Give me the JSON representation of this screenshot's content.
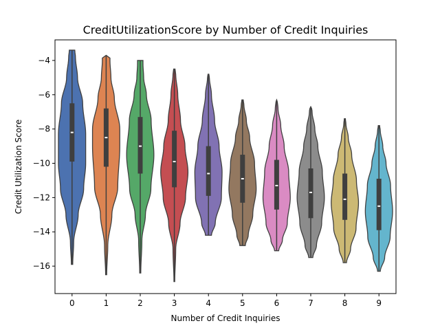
{
  "chart_data": {
    "type": "violin",
    "title": "CreditUtilizationScore by Number of Credit Inquiries",
    "xlabel": "Number of Credit Inquiries",
    "ylabel": "Credit Utilization Score",
    "categories": [
      "0",
      "1",
      "2",
      "3",
      "4",
      "5",
      "6",
      "7",
      "8",
      "9"
    ],
    "y_ticks": [
      -4,
      -6,
      -8,
      -10,
      -12,
      -14,
      -16
    ],
    "y_tick_labels": [
      "−4",
      "−6",
      "−8",
      "−10",
      "−12",
      "−14",
      "−16"
    ],
    "ylim": [
      -17.6,
      -2.8
    ],
    "colors": [
      "#4c72b0",
      "#dd8452",
      "#55a868",
      "#c44e52",
      "#8172b3",
      "#937860",
      "#da8bc3",
      "#8c8c8c",
      "#ccb974",
      "#64b5cd"
    ],
    "violins": [
      {
        "category": "0",
        "min": -15.9,
        "q1": -9.9,
        "median": -8.2,
        "q3": -6.5,
        "max": -3.4,
        "profile": [
          [
            -15.9,
            0.05
          ],
          [
            -14.6,
            0.12
          ],
          [
            -13.0,
            0.45
          ],
          [
            -11.5,
            0.85
          ],
          [
            -10.0,
            1.0
          ],
          [
            -8.3,
            1.0
          ],
          [
            -6.5,
            0.78
          ],
          [
            -5.0,
            0.4
          ],
          [
            -3.8,
            0.25
          ],
          [
            -3.4,
            0.2
          ]
        ]
      },
      {
        "category": "1",
        "min": -16.5,
        "q1": -10.2,
        "median": -8.5,
        "q3": -6.8,
        "max": -3.7,
        "profile": [
          [
            -16.5,
            0.04
          ],
          [
            -14.8,
            0.12
          ],
          [
            -13.0,
            0.42
          ],
          [
            -11.4,
            0.85
          ],
          [
            -9.0,
            1.0
          ],
          [
            -8.0,
            1.0
          ],
          [
            -6.2,
            0.6
          ],
          [
            -5.0,
            0.35
          ],
          [
            -4.0,
            0.28
          ],
          [
            -3.7,
            0.28
          ]
        ]
      },
      {
        "category": "2",
        "min": -16.4,
        "q1": -10.6,
        "median": -9.0,
        "q3": -7.3,
        "max": -4.0,
        "profile": [
          [
            -16.4,
            0.04
          ],
          [
            -14.5,
            0.12
          ],
          [
            -13.0,
            0.38
          ],
          [
            -11.5,
            0.78
          ],
          [
            -9.5,
            1.0
          ],
          [
            -7.5,
            0.8
          ],
          [
            -6.0,
            0.45
          ],
          [
            -5.0,
            0.25
          ],
          [
            -4.2,
            0.2
          ],
          [
            -4.0,
            0.2
          ]
        ]
      },
      {
        "category": "3",
        "min": -16.9,
        "q1": -11.4,
        "median": -9.9,
        "q3": -8.1,
        "max": -4.5,
        "profile": [
          [
            -16.9,
            0.03
          ],
          [
            -15.0,
            0.1
          ],
          [
            -13.5,
            0.42
          ],
          [
            -12.0,
            0.82
          ],
          [
            -10.5,
            1.0
          ],
          [
            -9.0,
            0.78
          ],
          [
            -7.5,
            0.45
          ],
          [
            -6.0,
            0.25
          ],
          [
            -4.8,
            0.1
          ],
          [
            -4.5,
            0.05
          ]
        ]
      },
      {
        "category": "4",
        "min": -14.2,
        "q1": -11.9,
        "median": -10.6,
        "q3": -9.0,
        "max": -4.8,
        "profile": [
          [
            -14.2,
            0.22
          ],
          [
            -13.5,
            0.5
          ],
          [
            -12.0,
            0.95
          ],
          [
            -10.5,
            1.0
          ],
          [
            -9.0,
            0.78
          ],
          [
            -7.5,
            0.45
          ],
          [
            -6.0,
            0.22
          ],
          [
            -5.0,
            0.07
          ],
          [
            -4.8,
            0.03
          ]
        ]
      },
      {
        "category": "5",
        "min": -14.8,
        "q1": -12.3,
        "median": -10.9,
        "q3": -9.5,
        "max": -6.3,
        "profile": [
          [
            -14.8,
            0.2
          ],
          [
            -14.2,
            0.42
          ],
          [
            -13.0,
            0.75
          ],
          [
            -11.5,
            1.0
          ],
          [
            -10.0,
            0.88
          ],
          [
            -8.5,
            0.52
          ],
          [
            -7.5,
            0.28
          ],
          [
            -6.6,
            0.1
          ],
          [
            -6.3,
            0.05
          ]
        ]
      },
      {
        "category": "6",
        "min": -15.1,
        "q1": -12.7,
        "median": -11.3,
        "q3": -9.8,
        "max": -6.3,
        "profile": [
          [
            -15.1,
            0.15
          ],
          [
            -14.5,
            0.42
          ],
          [
            -13.5,
            0.78
          ],
          [
            -12.0,
            1.0
          ],
          [
            -10.5,
            0.88
          ],
          [
            -9.0,
            0.55
          ],
          [
            -7.8,
            0.3
          ],
          [
            -6.8,
            0.1
          ],
          [
            -6.3,
            0.04
          ]
        ]
      },
      {
        "category": "7",
        "min": -15.5,
        "q1": -13.2,
        "median": -11.7,
        "q3": -10.3,
        "max": -6.7,
        "profile": [
          [
            -15.5,
            0.15
          ],
          [
            -14.8,
            0.42
          ],
          [
            -13.5,
            0.8
          ],
          [
            -12.0,
            1.0
          ],
          [
            -10.5,
            0.85
          ],
          [
            -9.0,
            0.52
          ],
          [
            -8.0,
            0.3
          ],
          [
            -7.0,
            0.1
          ],
          [
            -6.7,
            0.05
          ]
        ]
      },
      {
        "category": "8",
        "min": -15.8,
        "q1": -13.3,
        "median": -12.1,
        "q3": -10.6,
        "max": -7.4,
        "profile": [
          [
            -15.8,
            0.12
          ],
          [
            -15.0,
            0.42
          ],
          [
            -13.8,
            0.82
          ],
          [
            -12.3,
            1.0
          ],
          [
            -11.0,
            0.85
          ],
          [
            -9.5,
            0.5
          ],
          [
            -8.5,
            0.25
          ],
          [
            -7.7,
            0.08
          ],
          [
            -7.4,
            0.04
          ]
        ]
      },
      {
        "category": "9",
        "min": -16.3,
        "q1": -13.9,
        "median": -12.5,
        "q3": -10.9,
        "max": -7.8,
        "profile": [
          [
            -16.3,
            0.1
          ],
          [
            -15.5,
            0.42
          ],
          [
            -14.3,
            0.82
          ],
          [
            -12.8,
            1.0
          ],
          [
            -11.3,
            0.85
          ],
          [
            -10.0,
            0.52
          ],
          [
            -9.0,
            0.28
          ],
          [
            -8.1,
            0.1
          ],
          [
            -7.8,
            0.05
          ]
        ]
      }
    ]
  }
}
